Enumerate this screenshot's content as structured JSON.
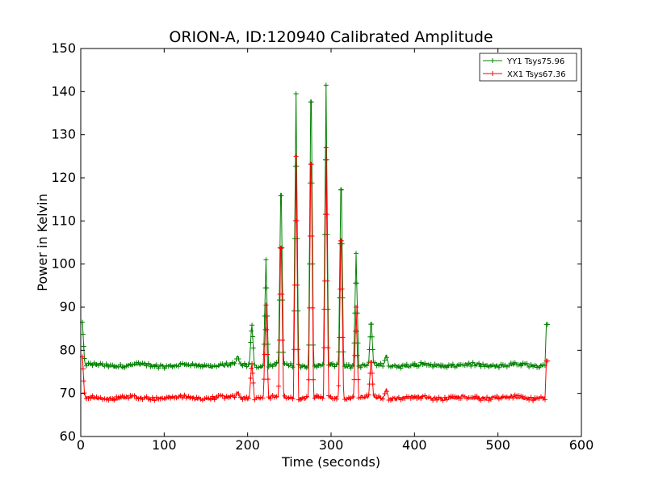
{
  "chart_data": {
    "type": "line",
    "title": "ORION-A, ID:120940 Calibrated Amplitude",
    "xlabel": "Time (seconds)",
    "ylabel": "Power in Kelvin",
    "xlim": [
      0,
      600
    ],
    "ylim": [
      60,
      150
    ],
    "xticks": [
      "0",
      "100",
      "200",
      "300",
      "400",
      "500",
      "600"
    ],
    "yticks": [
      "60",
      "70",
      "80",
      "90",
      "100",
      "110",
      "120",
      "130",
      "140",
      "150"
    ],
    "grid": false,
    "legend_position": "top-right",
    "marker": "+",
    "series": [
      {
        "name": "YY1 Tsys75.96",
        "color": "#008000",
        "baseline": 76.5,
        "start_spike": 86.5,
        "end_value": 86,
        "peaks": [
          {
            "x": 188,
            "y": 79
          },
          {
            "x": 205,
            "y": 86.5
          },
          {
            "x": 222,
            "y": 101
          },
          {
            "x": 240,
            "y": 122
          },
          {
            "x": 258,
            "y": 139.5
          },
          {
            "x": 276,
            "y": 147
          },
          {
            "x": 294,
            "y": 141.5
          },
          {
            "x": 312,
            "y": 123.5
          },
          {
            "x": 330,
            "y": 102.5
          },
          {
            "x": 348,
            "y": 87.5
          },
          {
            "x": 366,
            "y": 79
          }
        ]
      },
      {
        "name": "XX1 Tsys67.36",
        "color": "#ff0000",
        "baseline": 69,
        "start_spike": 78.5,
        "end_value": 77.5,
        "peaks": [
          {
            "x": 188,
            "y": 70.5
          },
          {
            "x": 205,
            "y": 77.5
          },
          {
            "x": 222,
            "y": 90.5
          },
          {
            "x": 240,
            "y": 109
          },
          {
            "x": 258,
            "y": 125
          },
          {
            "x": 276,
            "y": 131.5
          },
          {
            "x": 294,
            "y": 127
          },
          {
            "x": 312,
            "y": 111
          },
          {
            "x": 330,
            "y": 90
          },
          {
            "x": 348,
            "y": 78.5
          },
          {
            "x": 366,
            "y": 71
          }
        ]
      }
    ]
  }
}
